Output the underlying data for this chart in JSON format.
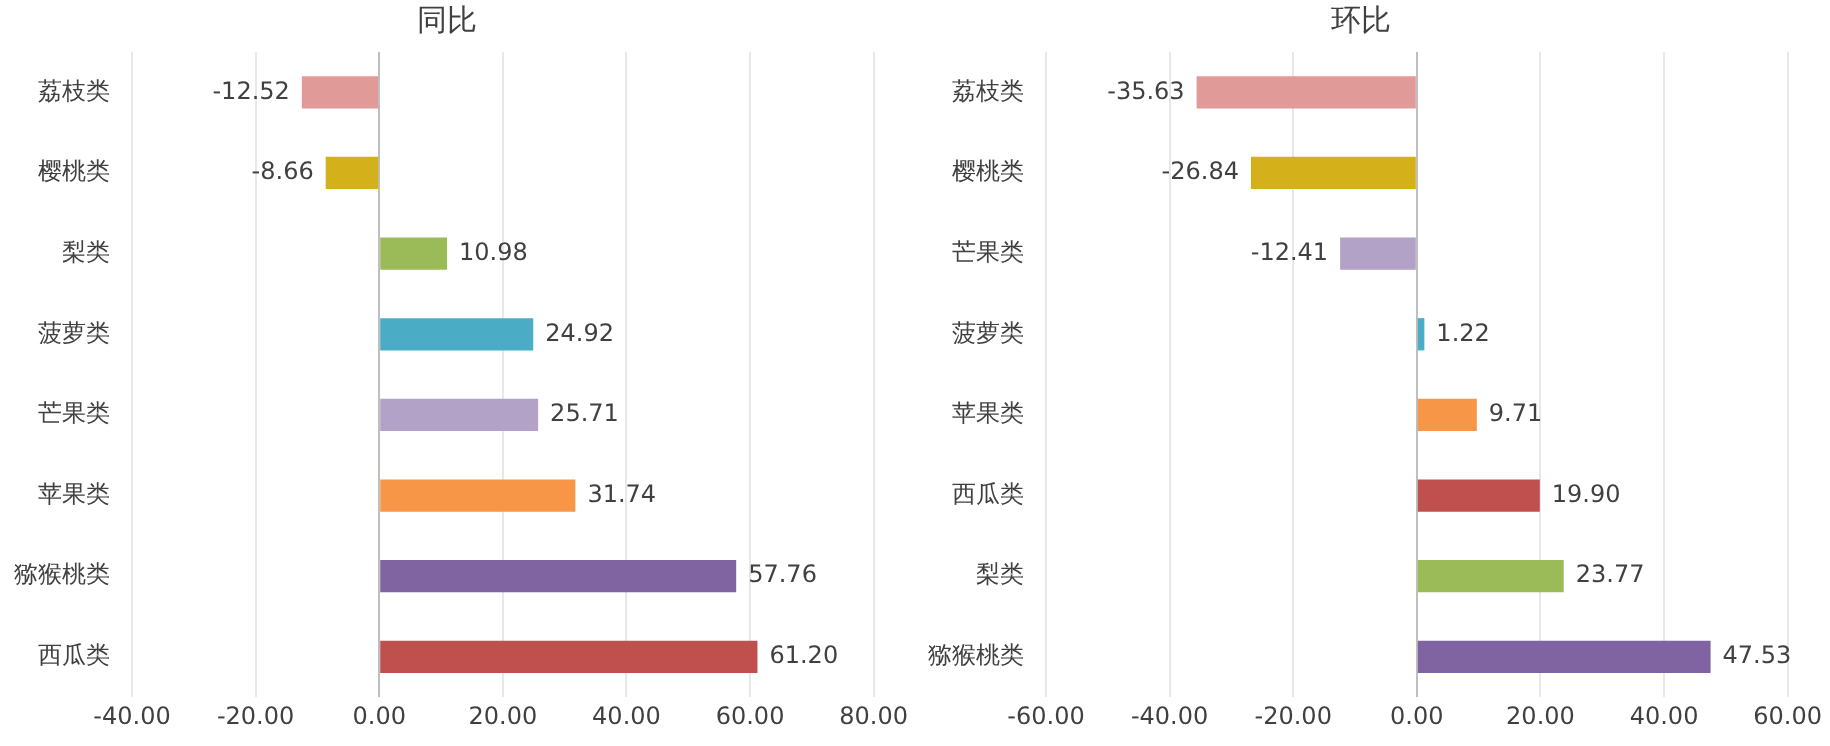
{
  "chart_data": [
    {
      "type": "bar",
      "orientation": "horizontal",
      "title": "同比",
      "categories": [
        "荔枝类",
        "樱桃类",
        "梨类",
        "菠萝类",
        "芒果类",
        "苹果类",
        "猕猴桃类",
        "西瓜类"
      ],
      "values": [
        -12.52,
        -8.66,
        10.98,
        24.92,
        25.71,
        31.74,
        57.76,
        61.2
      ],
      "colors": [
        "#e09a98",
        "#d4b01a",
        "#9bbb59",
        "#4bacc6",
        "#b3a2c7",
        "#f79646",
        "#8064a2",
        "#c0504d"
      ],
      "xlim": [
        -40,
        80
      ],
      "xticks": [
        {
          "value": -40,
          "label": "-40.00"
        },
        {
          "value": -20,
          "label": "-20.00"
        },
        {
          "value": 0,
          "label": "0.00"
        },
        {
          "value": 20,
          "label": "20.00"
        },
        {
          "value": 40,
          "label": "40.00"
        },
        {
          "value": 60,
          "label": "60.00"
        },
        {
          "value": 80,
          "label": "80.00"
        }
      ],
      "value_labels": [
        "-12.52",
        "-8.66",
        "10.98",
        "24.92",
        "25.71",
        "31.74",
        "57.76",
        "61.20"
      ],
      "grid": "x",
      "legend": false
    },
    {
      "type": "bar",
      "orientation": "horizontal",
      "title": "环比",
      "categories": [
        "荔枝类",
        "樱桃类",
        "芒果类",
        "菠萝类",
        "苹果类",
        "西瓜类",
        "梨类",
        "猕猴桃类"
      ],
      "values": [
        -35.63,
        -26.84,
        -12.41,
        1.22,
        9.71,
        19.9,
        23.77,
        47.53
      ],
      "colors": [
        "#e09a98",
        "#d4b01a",
        "#b3a2c7",
        "#4bacc6",
        "#f79646",
        "#c0504d",
        "#9bbb59",
        "#8064a2"
      ],
      "xlim": [
        -60,
        60
      ],
      "xticks": [
        {
          "value": -60,
          "label": "-60.00"
        },
        {
          "value": -40,
          "label": "-40.00"
        },
        {
          "value": -20,
          "label": "-20.00"
        },
        {
          "value": 0,
          "label": "0.00"
        },
        {
          "value": 20,
          "label": "20.00"
        },
        {
          "value": 40,
          "label": "40.00"
        },
        {
          "value": 60,
          "label": "60.00"
        }
      ],
      "value_labels": [
        "-35.63",
        "-26.84",
        "-12.41",
        "1.22",
        "9.71",
        "19.90",
        "23.77",
        "47.53"
      ],
      "grid": "x",
      "legend": false
    }
  ]
}
